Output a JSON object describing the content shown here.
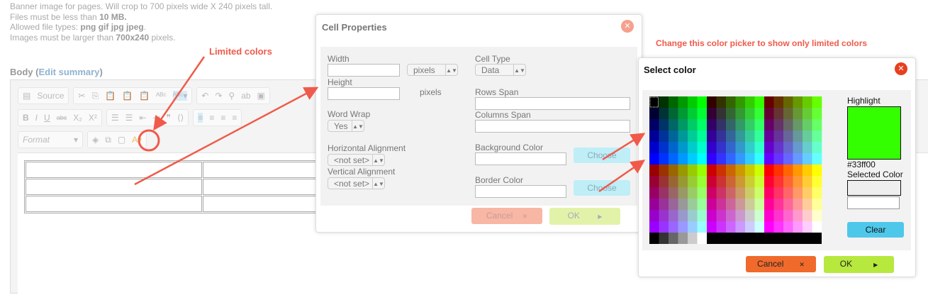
{
  "help": {
    "line1": "Banner image for pages. Will crop to 700 pixels wide X 240 pixels tall.",
    "line2_pre": "Files must be less than ",
    "line2_bold": "10 MB.",
    "line3_pre": "Allowed file types: ",
    "line3_bold": "png gif jpg jpeg",
    "line4_pre": "Images must be larger than ",
    "line4_bold": "700x240",
    "line4_post": " pixels."
  },
  "body": {
    "label": "Body",
    "edit_summary": "Edit summary"
  },
  "toolbar": {
    "source": "Source",
    "bold": "B",
    "italic": "I",
    "underline": "U",
    "strike": "abc",
    "subscript": "X₂",
    "superscript": "X²",
    "format_placeholder": "Format"
  },
  "annotations": {
    "limited": "Limited colors",
    "change": "Change this color picker to show only limited colors",
    "color": "#f05a4a"
  },
  "cell_properties": {
    "title": "Cell Properties",
    "width_label": "Width",
    "width_unit": "pixels",
    "height_label": "Height",
    "height_unit": "pixels",
    "word_wrap_label": "Word Wrap",
    "word_wrap": "Yes",
    "h_align_label": "Horizontal Alignment",
    "h_align": "<not set>",
    "v_align_label": "Vertical Alignment",
    "v_align": "<not set>",
    "cell_type_label": "Cell Type",
    "cell_type": "Data",
    "rows_span_label": "Rows Span",
    "columns_span_label": "Columns Span",
    "bg_color_label": "Background Color",
    "border_color_label": "Border Color",
    "choose": "Choose",
    "cancel": "Cancel",
    "ok": "OK"
  },
  "select_color": {
    "title": "Select color",
    "highlight_label": "Highlight",
    "highlight_color": "#33ff00",
    "highlight_value": "#33ff00",
    "selected_label": "Selected Color",
    "clear": "Clear",
    "cancel": "Cancel",
    "ok": "OK",
    "grays": [
      "#000000",
      "#333333",
      "#666666",
      "#999999",
      "#cccccc",
      "#ffffff"
    ]
  }
}
